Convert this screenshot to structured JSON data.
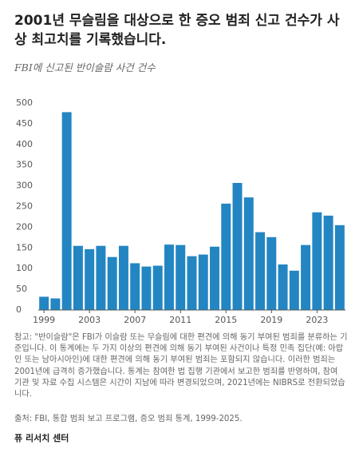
{
  "title": "2001년 무슬림을 대상으로 한 증오 범죄 신고 건수가 사상 최고치를 기록했습니다.",
  "chart_data": {
    "type": "bar",
    "subtitle": "FBI에 신고된 반이슬람 사건 건수",
    "categories": [
      "1999",
      null,
      null,
      null,
      "2003",
      null,
      null,
      null,
      "2007",
      null,
      null,
      null,
      "2011",
      null,
      null,
      null,
      "2015",
      null,
      null,
      null,
      "2019",
      null,
      null,
      null,
      "2023",
      null,
      null
    ],
    "values": [
      32,
      28,
      478,
      155,
      147,
      155,
      128,
      155,
      113,
      105,
      107,
      158,
      157,
      130,
      134,
      153,
      257,
      307,
      272,
      188,
      176,
      110,
      95,
      157,
      236,
      228,
      205
    ],
    "color": "#2386c2",
    "ylim": [
      0,
      500
    ],
    "yticks": [
      0,
      50,
      100,
      150,
      200,
      250,
      300,
      350,
      400,
      450,
      500
    ],
    "grid": false
  },
  "note": "참고: \"반이슬람\"은 FBI가 이슬람 또는 무슬림에 대한 편견에 의해 동기 부여된 범죄를 분류하는 기준입니다. 이 통계에는 두 가지 이상의 편견에 의해 동기 부여된 사건이나 특정 민족 집단(예: 아랍인 또는 남아시아인)에 대한 편견에 의해 동기 부여된 범죄는 포함되지 않습니다. 이러한 범죄는 2001년에 급격히 증가했습니다. 통계는 참여한 법 집행 기관에서 보고한 범죄를 반영하며, 참여 기관 및 자료 수집 시스템은 시간이 지남에 따라 변경되었으며, 2021년에는 NIBRS로 전환되었습니다.",
  "source": "출처: FBI, 통합 범죄 보고 프로그램, 증오 범죄 통계, 1999-2025.",
  "footer": "퓨 리서치 센터"
}
